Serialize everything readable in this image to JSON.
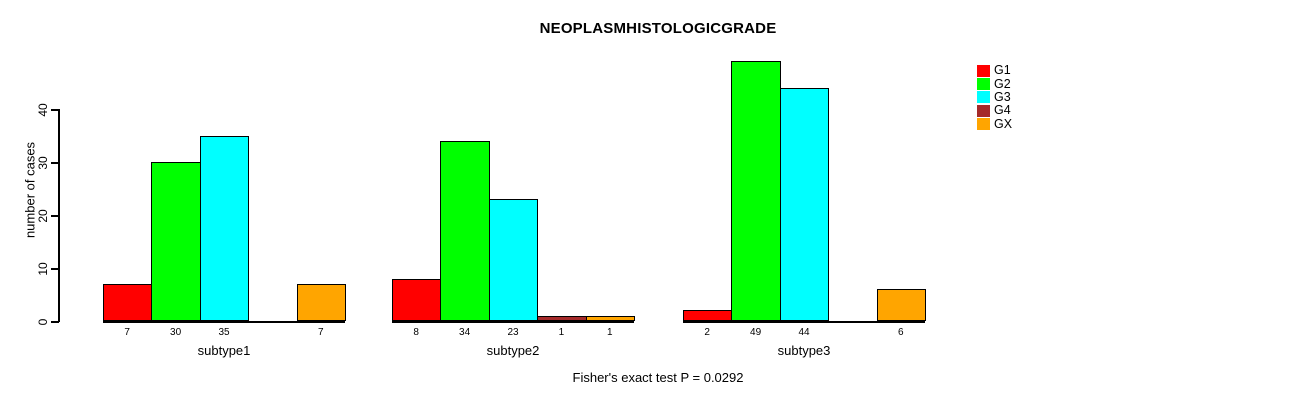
{
  "chart_data": {
    "type": "bar",
    "title": "NEOPLASMHISTOLOGICGRADE",
    "ylabel": "number of cases",
    "xlabel": "",
    "yticks": [
      0,
      10,
      20,
      30,
      40
    ],
    "ylim": [
      0,
      49
    ],
    "grid": false,
    "legend_position": "right",
    "bar_value_labels": true,
    "categories": [
      "subtype1",
      "subtype2",
      "subtype3"
    ],
    "series": [
      {
        "name": "G1",
        "color": "#ff0000",
        "values": [
          7,
          8,
          2
        ]
      },
      {
        "name": "G2",
        "color": "#00ff00",
        "values": [
          30,
          34,
          49
        ]
      },
      {
        "name": "G3",
        "color": "#00ffff",
        "values": [
          35,
          23,
          44
        ]
      },
      {
        "name": "G4",
        "color": "#a52a2a",
        "values": [
          0,
          1,
          0
        ]
      },
      {
        "name": "GX",
        "color": "#ffa500",
        "values": [
          7,
          1,
          6
        ]
      }
    ],
    "annotation": "Fisher's exact test P = 0.0292",
    "axis_color": "#000000",
    "background_color": "#ffffff"
  }
}
